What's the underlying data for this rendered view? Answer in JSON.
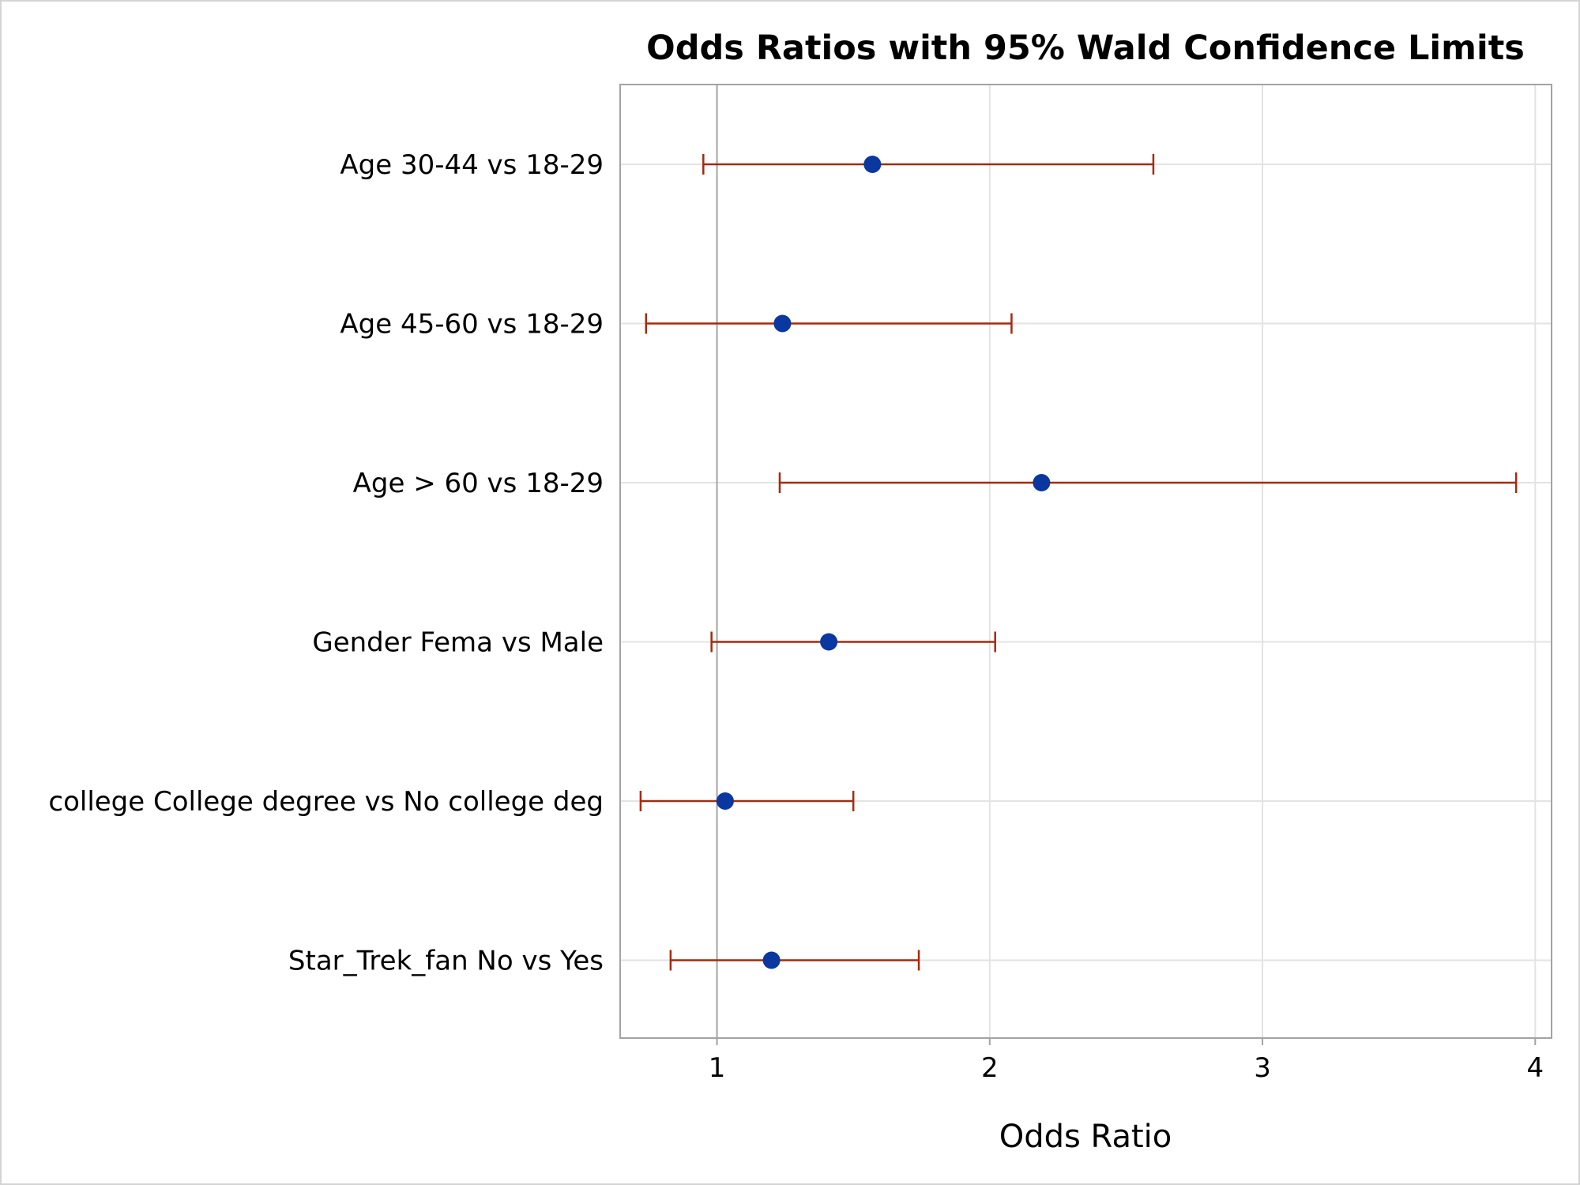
{
  "chart_data": {
    "type": "scatter",
    "title": "Odds Ratios with 95% Wald Confidence Limits",
    "xlabel": "Odds Ratio",
    "ylabel": "",
    "xlim": [
      0.645,
      4.06
    ],
    "xticks": [
      "1",
      "2",
      "3",
      "4"
    ],
    "xtick_values": [
      1,
      2,
      3,
      4
    ],
    "reference_line": 1,
    "grid": true,
    "categories": [
      "Age 30-44 vs 18-29",
      "Age 45-60 vs 18-29",
      "Age > 60 vs 18-29",
      "Gender Fema vs Male",
      "college College degree vs No college deg",
      "Star_Trek_fan No vs Yes"
    ],
    "series": [
      {
        "point_estimate": [
          1.57,
          1.24,
          2.19,
          1.41,
          1.03,
          1.2
        ],
        "lower_cl": [
          0.95,
          0.74,
          1.23,
          0.98,
          0.72,
          0.83
        ],
        "upper_cl": [
          2.6,
          2.08,
          3.93,
          2.02,
          1.5,
          1.74
        ]
      }
    ],
    "colors": {
      "marker": "#0a38a0",
      "error_bar": "#a52a0d",
      "grid": "#e3e3e3",
      "axis": "#a3a3a3",
      "reference": "#a3a3a3"
    }
  }
}
